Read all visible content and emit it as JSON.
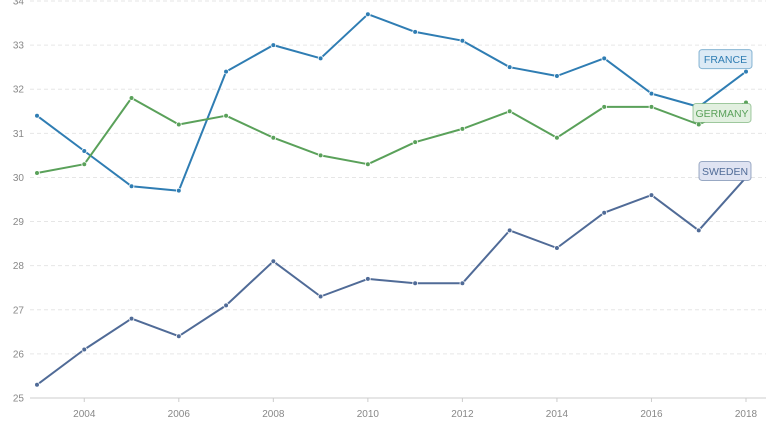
{
  "chart_data": {
    "type": "line",
    "title": "",
    "xlabel": "",
    "ylabel": "",
    "x": [
      2003,
      2004,
      2005,
      2006,
      2007,
      2008,
      2009,
      2010,
      2011,
      2012,
      2013,
      2014,
      2015,
      2016,
      2017,
      2018
    ],
    "x_ticks": [
      2004,
      2006,
      2008,
      2010,
      2012,
      2014,
      2016,
      2018
    ],
    "y_ticks": [
      25,
      26,
      27,
      28,
      29,
      30,
      31,
      32,
      33,
      34
    ],
    "xlim": [
      2003,
      2018.5
    ],
    "ylim": [
      25,
      34
    ],
    "grid": true,
    "legend": "inline labels at line ends",
    "series": [
      {
        "name": "FRANCE",
        "color": "#2f7db3",
        "label_bg": "#dceaf5",
        "values": [
          31.4,
          30.6,
          29.8,
          29.7,
          32.4,
          33.0,
          32.7,
          33.7,
          33.3,
          33.1,
          32.5,
          32.3,
          32.7,
          31.9,
          31.6,
          32.4
        ]
      },
      {
        "name": "GERMANY",
        "color": "#5aa15a",
        "label_bg": "#e2f0e0",
        "values": [
          30.1,
          30.3,
          31.8,
          31.2,
          31.4,
          30.9,
          30.5,
          30.3,
          30.8,
          31.1,
          31.5,
          30.9,
          31.6,
          31.6,
          31.2,
          31.7
        ]
      },
      {
        "name": "SWEDEN",
        "color": "#506b97",
        "label_bg": "#dfe3f2",
        "values": [
          25.3,
          26.1,
          26.8,
          26.4,
          27.1,
          28.1,
          27.3,
          27.7,
          27.6,
          27.6,
          28.8,
          28.4,
          29.2,
          29.6,
          28.8,
          30.0
        ]
      }
    ]
  }
}
